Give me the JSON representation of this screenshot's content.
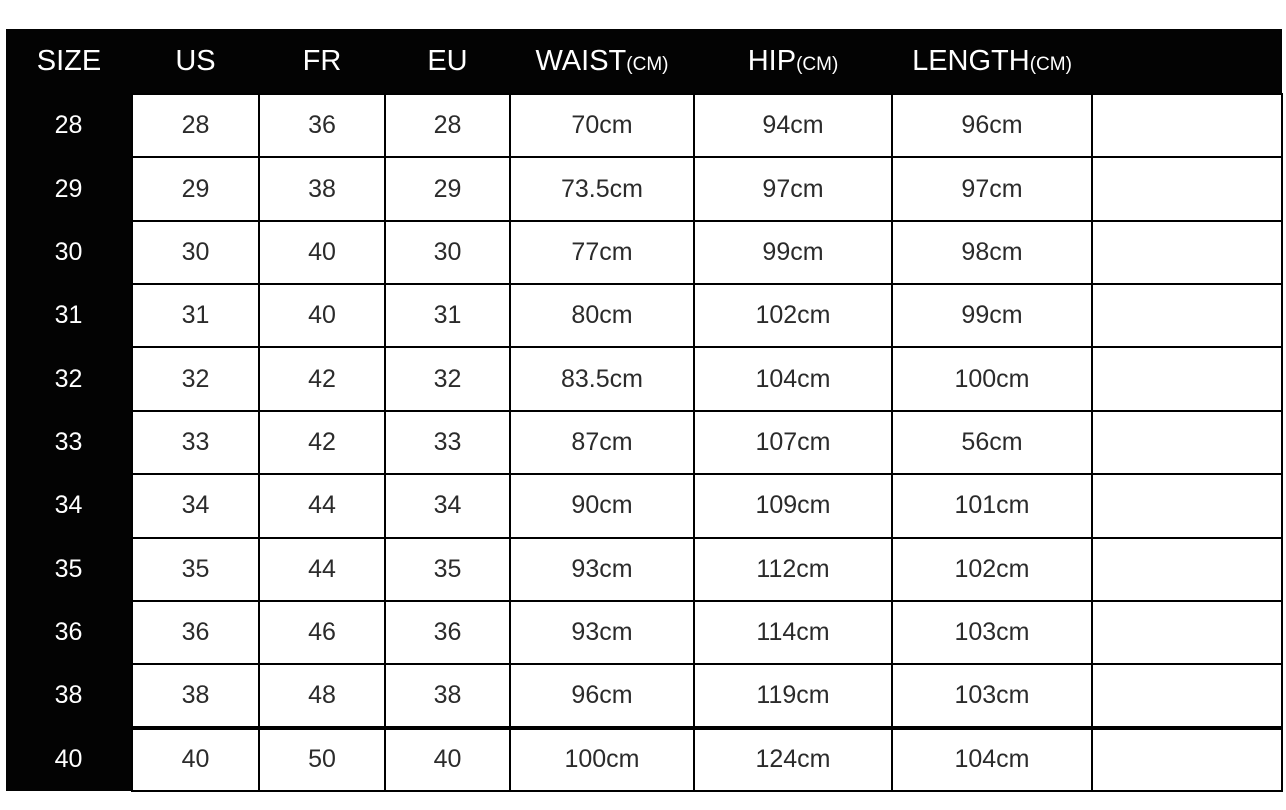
{
  "table": {
    "columns": [
      {
        "label": "SIZE",
        "unit": ""
      },
      {
        "label": "US",
        "unit": ""
      },
      {
        "label": "FR",
        "unit": ""
      },
      {
        "label": "EU",
        "unit": ""
      },
      {
        "label": "WAIST",
        "unit": "(CM)"
      },
      {
        "label": "HIP",
        "unit": "(CM)"
      },
      {
        "label": "LENGTH",
        "unit": "(CM)"
      },
      {
        "label": "",
        "unit": ""
      }
    ],
    "rows": [
      {
        "size": "28",
        "us": "28",
        "fr": "36",
        "eu": "28",
        "waist": "70cm",
        "hip": "94cm",
        "length": "96cm",
        "extra": ""
      },
      {
        "size": "29",
        "us": "29",
        "fr": "38",
        "eu": "29",
        "waist": "73.5cm",
        "hip": "97cm",
        "length": "97cm",
        "extra": ""
      },
      {
        "size": "30",
        "us": "30",
        "fr": "40",
        "eu": "30",
        "waist": "77cm",
        "hip": "99cm",
        "length": "98cm",
        "extra": ""
      },
      {
        "size": "31",
        "us": "31",
        "fr": "40",
        "eu": "31",
        "waist": "80cm",
        "hip": "102cm",
        "length": "99cm",
        "extra": ""
      },
      {
        "size": "32",
        "us": "32",
        "fr": "42",
        "eu": "32",
        "waist": "83.5cm",
        "hip": "104cm",
        "length": "100cm",
        "extra": ""
      },
      {
        "size": "33",
        "us": "33",
        "fr": "42",
        "eu": "33",
        "waist": "87cm",
        "hip": "107cm",
        "length": "56cm",
        "extra": ""
      },
      {
        "size": "34",
        "us": "34",
        "fr": "44",
        "eu": "34",
        "waist": "90cm",
        "hip": "109cm",
        "length": "101cm",
        "extra": ""
      },
      {
        "size": "35",
        "us": "35",
        "fr": "44",
        "eu": "35",
        "waist": "93cm",
        "hip": "112cm",
        "length": "102cm",
        "extra": ""
      },
      {
        "size": "36",
        "us": "36",
        "fr": "46",
        "eu": "36",
        "waist": "93cm",
        "hip": "114cm",
        "length": "103cm",
        "extra": ""
      },
      {
        "size": "38",
        "us": "38",
        "fr": "48",
        "eu": "38",
        "waist": "96cm",
        "hip": "119cm",
        "length": "103cm",
        "extra": ""
      },
      {
        "size": "40",
        "us": "40",
        "fr": "50",
        "eu": "40",
        "waist": "100cm",
        "hip": "124cm",
        "length": "104cm",
        "extra": ""
      }
    ]
  },
  "colors": {
    "header_bg": "#030303",
    "header_text": "#ffffff",
    "cell_bg": "#ffffff",
    "cell_text": "#2b2b2b",
    "border": "#000000"
  }
}
